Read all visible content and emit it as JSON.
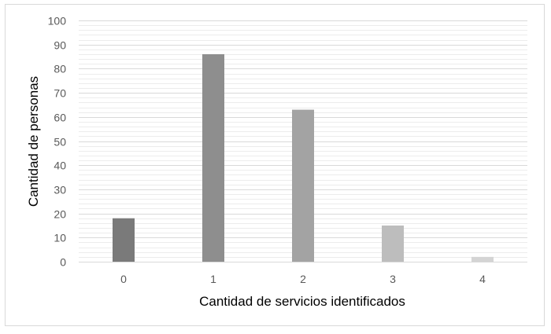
{
  "chart_data": {
    "type": "bar",
    "title": "",
    "xlabel": "Cantidad de servicios identificados",
    "ylabel": "Cantidad de personas",
    "categories": [
      "0",
      "1",
      "2",
      "3",
      "4"
    ],
    "values": [
      18,
      86,
      63,
      15,
      2
    ],
    "ylim": [
      0,
      100
    ],
    "yticks": [
      "0",
      "10",
      "20",
      "30",
      "40",
      "50",
      "60",
      "70",
      "80",
      "90",
      "100"
    ],
    "grid": true,
    "minor_grid": true,
    "legend": "none",
    "bar_colors": [
      "#7a7a7a",
      "#8e8e8e",
      "#a3a3a3",
      "#bdbdbd",
      "#d4d4d4"
    ],
    "gridline_color": "#d9d9d9",
    "minor_gridline_color": "#ececec"
  }
}
